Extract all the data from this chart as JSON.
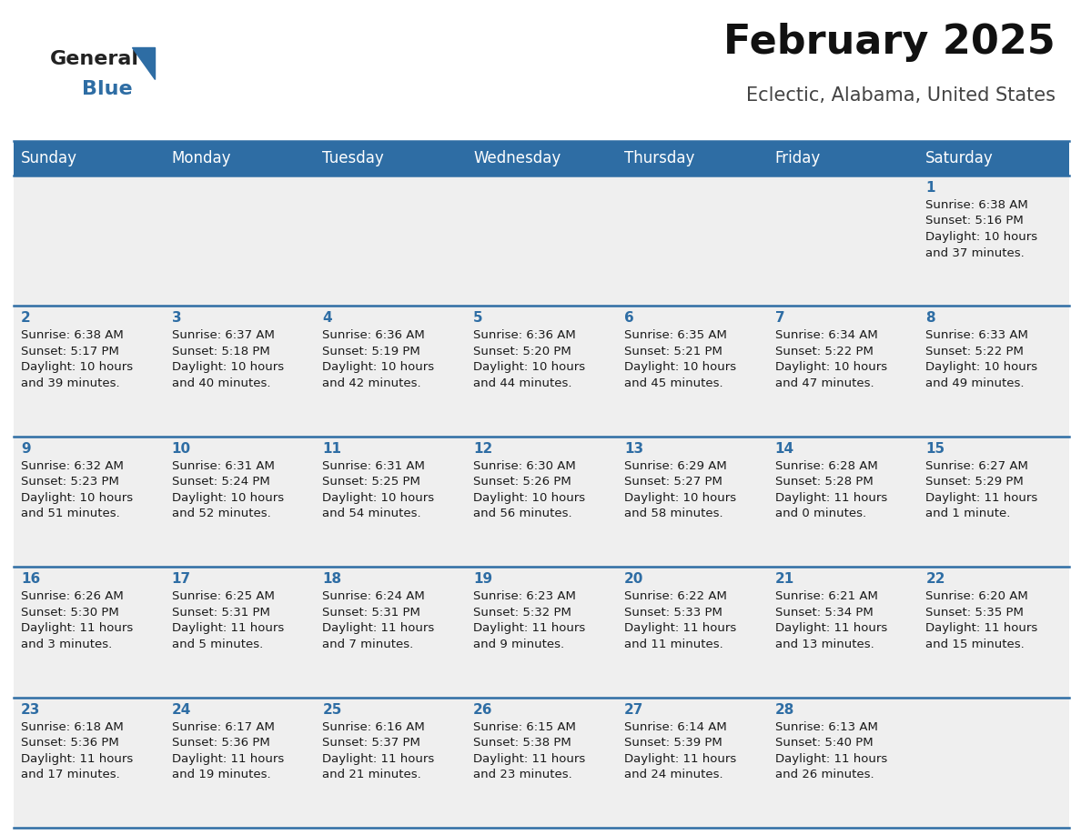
{
  "title": "February 2025",
  "subtitle": "Eclectic, Alabama, United States",
  "header_bg": "#2E6DA4",
  "header_text": "#FFFFFF",
  "cell_bg": "#EFEFEF",
  "cell_text": "#1a1a1a",
  "day_number_color": "#2E6DA4",
  "separator_color": "#2E6DA4",
  "days_of_week": [
    "Sunday",
    "Monday",
    "Tuesday",
    "Wednesday",
    "Thursday",
    "Friday",
    "Saturday"
  ],
  "calendar": [
    [
      {
        "day": null,
        "info": null
      },
      {
        "day": null,
        "info": null
      },
      {
        "day": null,
        "info": null
      },
      {
        "day": null,
        "info": null
      },
      {
        "day": null,
        "info": null
      },
      {
        "day": null,
        "info": null
      },
      {
        "day": 1,
        "info": "Sunrise: 6:38 AM\nSunset: 5:16 PM\nDaylight: 10 hours\nand 37 minutes."
      }
    ],
    [
      {
        "day": 2,
        "info": "Sunrise: 6:38 AM\nSunset: 5:17 PM\nDaylight: 10 hours\nand 39 minutes."
      },
      {
        "day": 3,
        "info": "Sunrise: 6:37 AM\nSunset: 5:18 PM\nDaylight: 10 hours\nand 40 minutes."
      },
      {
        "day": 4,
        "info": "Sunrise: 6:36 AM\nSunset: 5:19 PM\nDaylight: 10 hours\nand 42 minutes."
      },
      {
        "day": 5,
        "info": "Sunrise: 6:36 AM\nSunset: 5:20 PM\nDaylight: 10 hours\nand 44 minutes."
      },
      {
        "day": 6,
        "info": "Sunrise: 6:35 AM\nSunset: 5:21 PM\nDaylight: 10 hours\nand 45 minutes."
      },
      {
        "day": 7,
        "info": "Sunrise: 6:34 AM\nSunset: 5:22 PM\nDaylight: 10 hours\nand 47 minutes."
      },
      {
        "day": 8,
        "info": "Sunrise: 6:33 AM\nSunset: 5:22 PM\nDaylight: 10 hours\nand 49 minutes."
      }
    ],
    [
      {
        "day": 9,
        "info": "Sunrise: 6:32 AM\nSunset: 5:23 PM\nDaylight: 10 hours\nand 51 minutes."
      },
      {
        "day": 10,
        "info": "Sunrise: 6:31 AM\nSunset: 5:24 PM\nDaylight: 10 hours\nand 52 minutes."
      },
      {
        "day": 11,
        "info": "Sunrise: 6:31 AM\nSunset: 5:25 PM\nDaylight: 10 hours\nand 54 minutes."
      },
      {
        "day": 12,
        "info": "Sunrise: 6:30 AM\nSunset: 5:26 PM\nDaylight: 10 hours\nand 56 minutes."
      },
      {
        "day": 13,
        "info": "Sunrise: 6:29 AM\nSunset: 5:27 PM\nDaylight: 10 hours\nand 58 minutes."
      },
      {
        "day": 14,
        "info": "Sunrise: 6:28 AM\nSunset: 5:28 PM\nDaylight: 11 hours\nand 0 minutes."
      },
      {
        "day": 15,
        "info": "Sunrise: 6:27 AM\nSunset: 5:29 PM\nDaylight: 11 hours\nand 1 minute."
      }
    ],
    [
      {
        "day": 16,
        "info": "Sunrise: 6:26 AM\nSunset: 5:30 PM\nDaylight: 11 hours\nand 3 minutes."
      },
      {
        "day": 17,
        "info": "Sunrise: 6:25 AM\nSunset: 5:31 PM\nDaylight: 11 hours\nand 5 minutes."
      },
      {
        "day": 18,
        "info": "Sunrise: 6:24 AM\nSunset: 5:31 PM\nDaylight: 11 hours\nand 7 minutes."
      },
      {
        "day": 19,
        "info": "Sunrise: 6:23 AM\nSunset: 5:32 PM\nDaylight: 11 hours\nand 9 minutes."
      },
      {
        "day": 20,
        "info": "Sunrise: 6:22 AM\nSunset: 5:33 PM\nDaylight: 11 hours\nand 11 minutes."
      },
      {
        "day": 21,
        "info": "Sunrise: 6:21 AM\nSunset: 5:34 PM\nDaylight: 11 hours\nand 13 minutes."
      },
      {
        "day": 22,
        "info": "Sunrise: 6:20 AM\nSunset: 5:35 PM\nDaylight: 11 hours\nand 15 minutes."
      }
    ],
    [
      {
        "day": 23,
        "info": "Sunrise: 6:18 AM\nSunset: 5:36 PM\nDaylight: 11 hours\nand 17 minutes."
      },
      {
        "day": 24,
        "info": "Sunrise: 6:17 AM\nSunset: 5:36 PM\nDaylight: 11 hours\nand 19 minutes."
      },
      {
        "day": 25,
        "info": "Sunrise: 6:16 AM\nSunset: 5:37 PM\nDaylight: 11 hours\nand 21 minutes."
      },
      {
        "day": 26,
        "info": "Sunrise: 6:15 AM\nSunset: 5:38 PM\nDaylight: 11 hours\nand 23 minutes."
      },
      {
        "day": 27,
        "info": "Sunrise: 6:14 AM\nSunset: 5:39 PM\nDaylight: 11 hours\nand 24 minutes."
      },
      {
        "day": 28,
        "info": "Sunrise: 6:13 AM\nSunset: 5:40 PM\nDaylight: 11 hours\nand 26 minutes."
      },
      {
        "day": null,
        "info": null
      }
    ]
  ],
  "logo_general_color": "#222222",
  "logo_blue_color": "#2E6DA4",
  "title_fontsize": 32,
  "subtitle_fontsize": 15,
  "header_fontsize": 12,
  "day_num_fontsize": 11,
  "cell_info_fontsize": 9.5
}
